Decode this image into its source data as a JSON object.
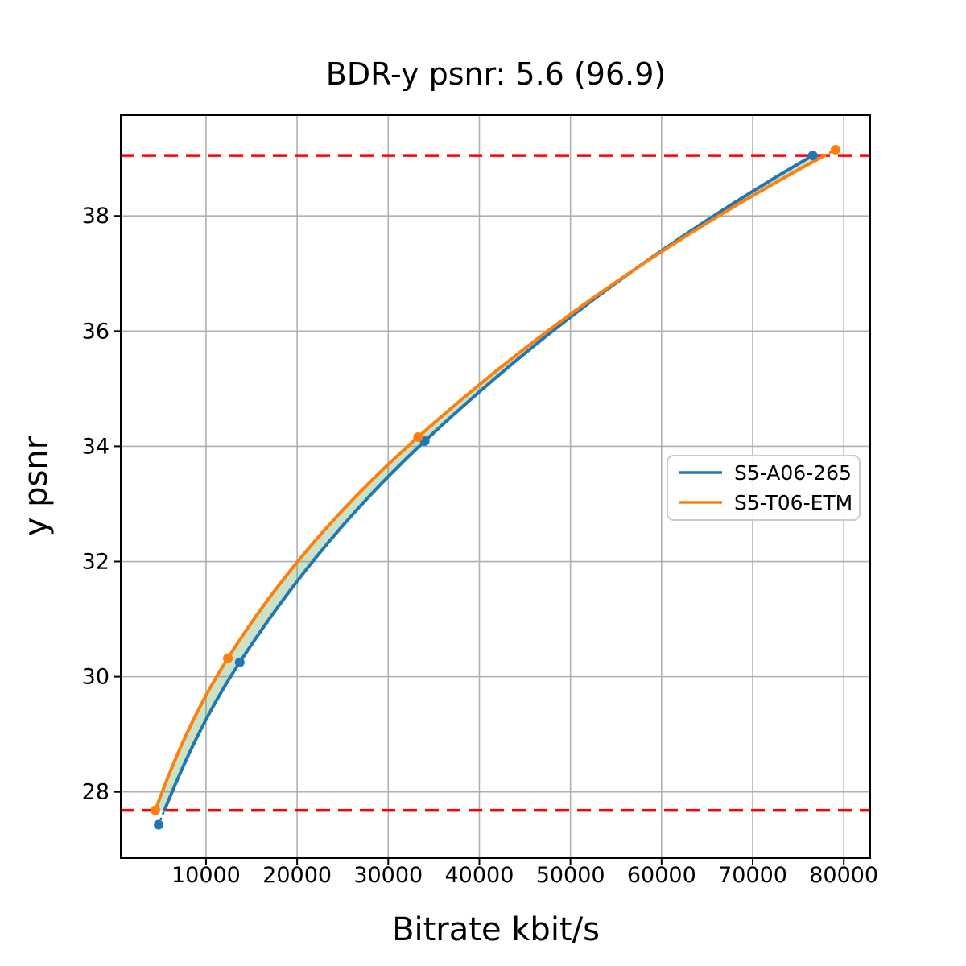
{
  "chart_data": {
    "type": "line",
    "title": "BDR-y psnr: 5.6 (96.9)",
    "xlabel": "Bitrate kbit/s",
    "ylabel": "y psnr",
    "xlim": [
      640,
      82900
    ],
    "ylim": [
      26.85,
      39.75
    ],
    "xticks": [
      10000,
      20000,
      30000,
      40000,
      50000,
      60000,
      70000,
      80000
    ],
    "yticks": [
      28,
      30,
      32,
      34,
      36,
      38
    ],
    "grid": true,
    "grid_color": "#b0b0b0",
    "interpolation": "pchip-log-x",
    "series": [
      {
        "name": "S5-A06-265",
        "color": "#1f77b4",
        "points": [
          [
            4790,
            27.43
          ],
          [
            13700,
            30.25
          ],
          [
            34000,
            34.09
          ],
          [
            76600,
            39.05
          ]
        ]
      },
      {
        "name": "S5-T06-ETM",
        "color": "#ff7f0e",
        "points": [
          [
            4430,
            27.68
          ],
          [
            12390,
            30.32
          ],
          [
            33270,
            34.16
          ],
          [
            79100,
            39.15
          ]
        ]
      }
    ],
    "bd_bounds_hlines": {
      "values": [
        27.68,
        39.05
      ],
      "color": "#ff0000",
      "style": "dashed"
    },
    "fill_between": {
      "color": "rgba(70,150,50,0.28)",
      "between": [
        "S5-A06-265",
        "S5-T06-ETM"
      ]
    },
    "legend": {
      "entries": [
        "S5-A06-265",
        "S5-T06-ETM"
      ],
      "position": "center-right"
    }
  }
}
